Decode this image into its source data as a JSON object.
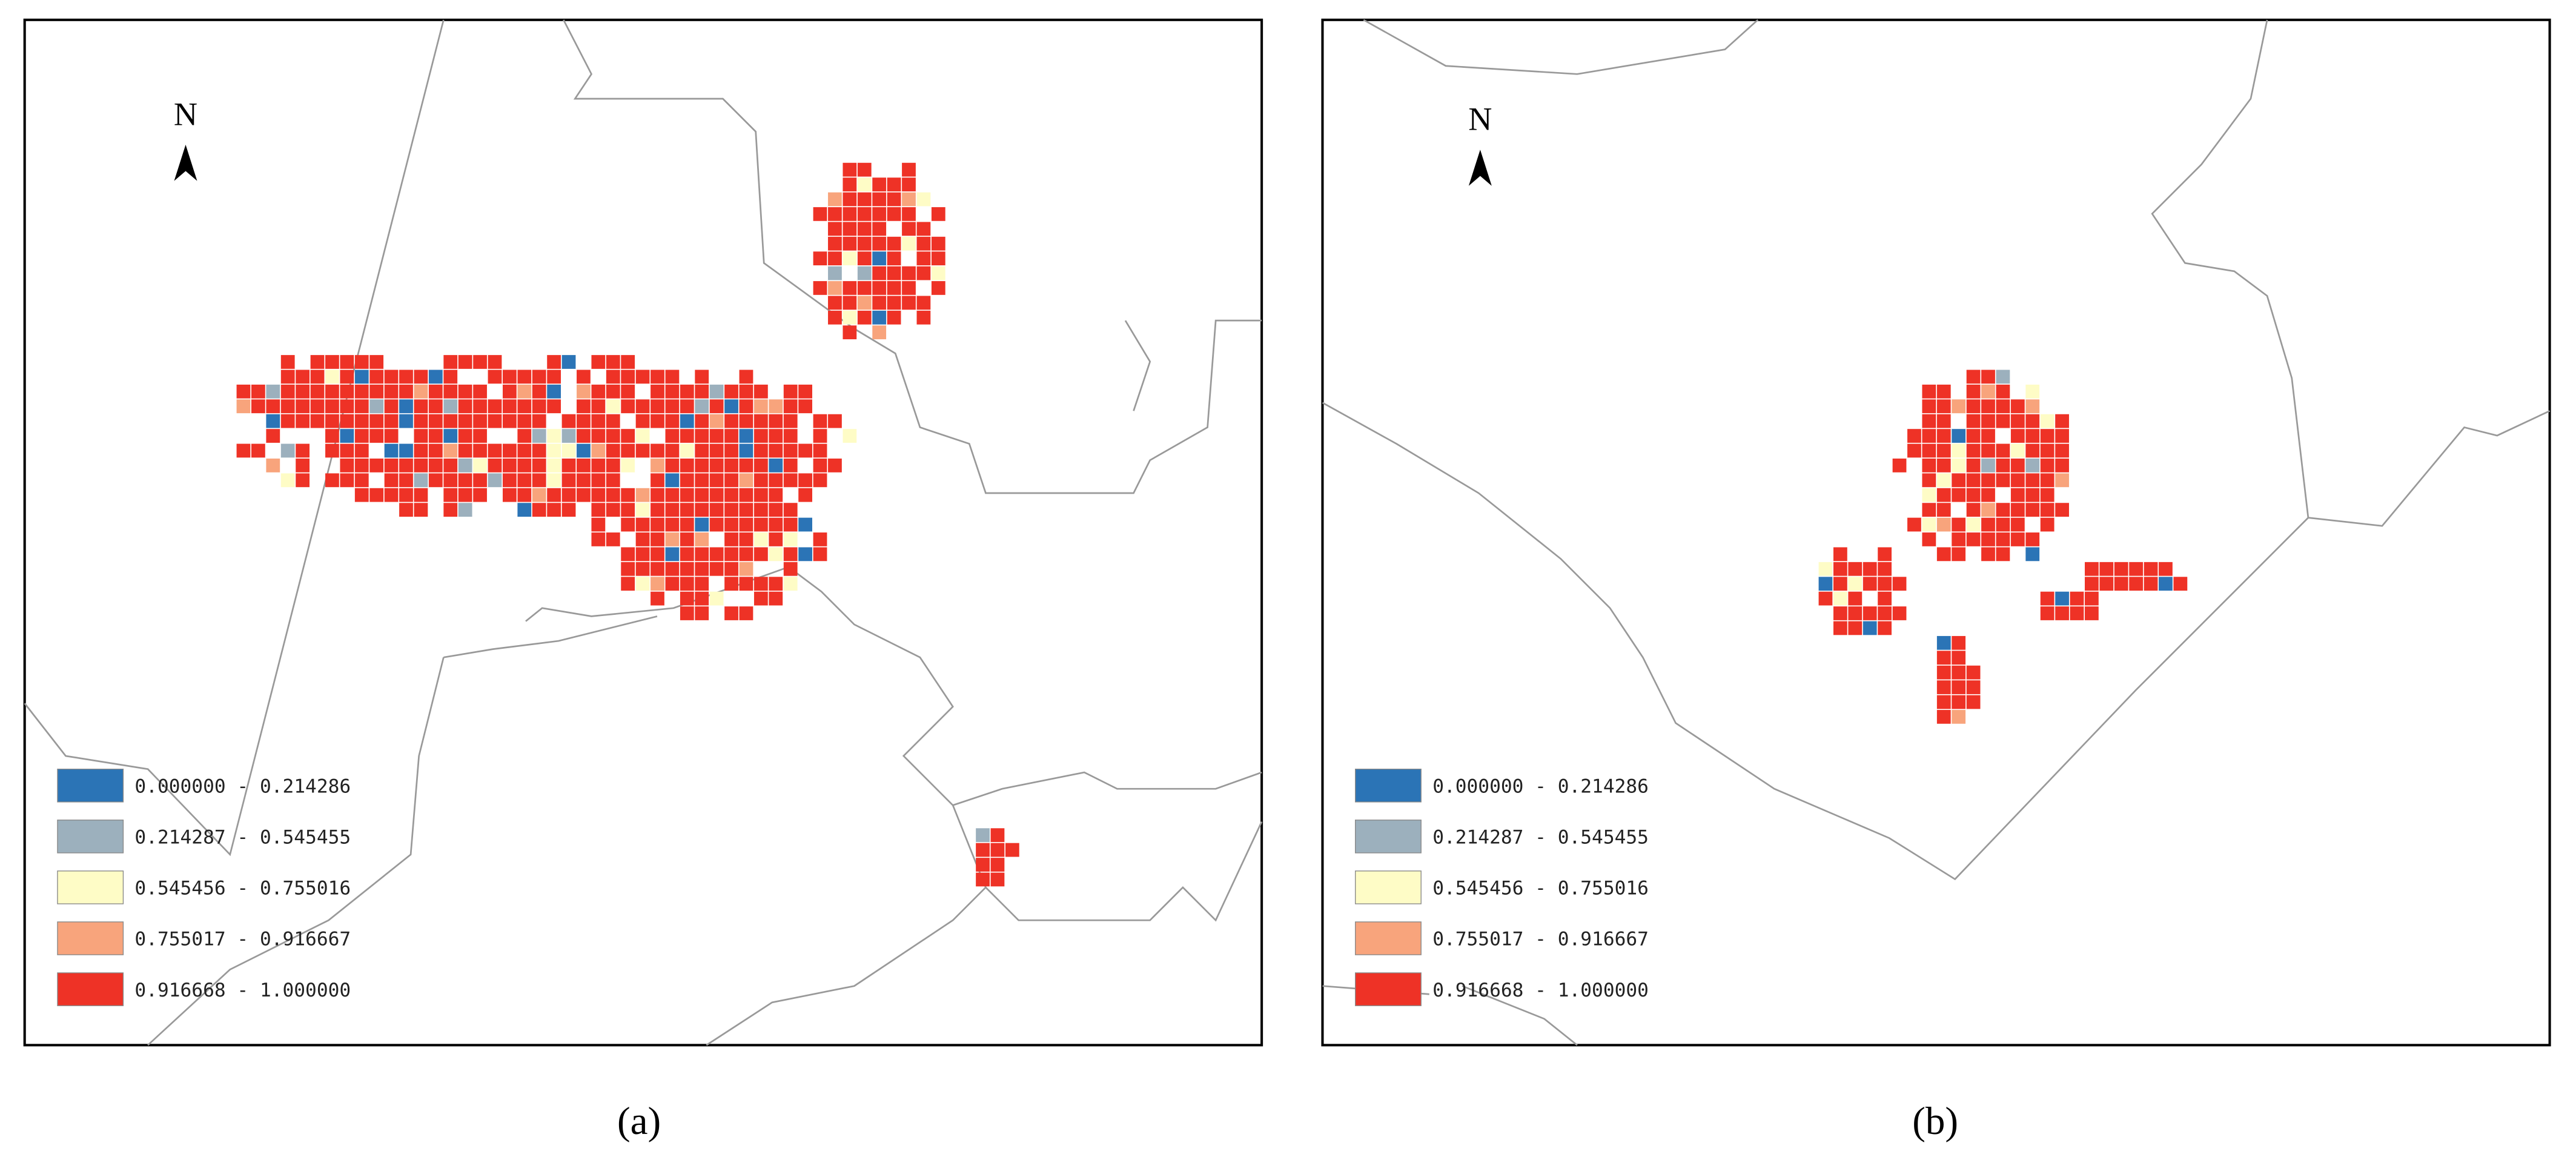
{
  "panels": [
    {
      "caption": "(a)",
      "north": "N",
      "legend": [
        {
          "label": "0.000000 - 0.214286",
          "color": "#2b74b6"
        },
        {
          "label": "0.214287 - 0.545455",
          "color": "#9cb0bd"
        },
        {
          "label": "0.545456 - 0.755016",
          "color": "#fefcc6"
        },
        {
          "label": "0.755017 - 0.916667",
          "color": "#f8a47c"
        },
        {
          "label": "0.916668 - 1.000000",
          "color": "#ee3226"
        }
      ]
    },
    {
      "caption": "(b)",
      "north": "N",
      "legend": [
        {
          "label": "0.000000 - 0.214286",
          "color": "#2b74b6"
        },
        {
          "label": "0.214287 - 0.545455",
          "color": "#9cb0bd"
        },
        {
          "label": "0.545456 - 0.755016",
          "color": "#fefcc6"
        },
        {
          "label": "0.755017 - 0.916667",
          "color": "#f8a47c"
        },
        {
          "label": "0.916668 - 1.000000",
          "color": "#ee3226"
        }
      ]
    }
  ]
}
